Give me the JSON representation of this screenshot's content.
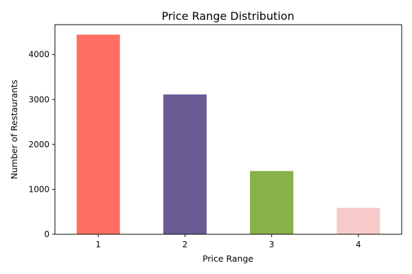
{
  "chart_data": {
    "type": "bar",
    "title": "Price Range Distribution",
    "xlabel": "Price Range",
    "ylabel": "Number of Restaurants",
    "categories": [
      "1",
      "2",
      "3",
      "4"
    ],
    "values": [
      4444,
      3113,
      1408,
      586
    ],
    "colors": [
      "#ff6f61",
      "#6b5b95",
      "#88b04b",
      "#f7cac9"
    ],
    "ylim": [
      0,
      4666
    ],
    "yticks": [
      0,
      1000,
      2000,
      3000,
      4000
    ],
    "grid": false,
    "legend": "none"
  }
}
